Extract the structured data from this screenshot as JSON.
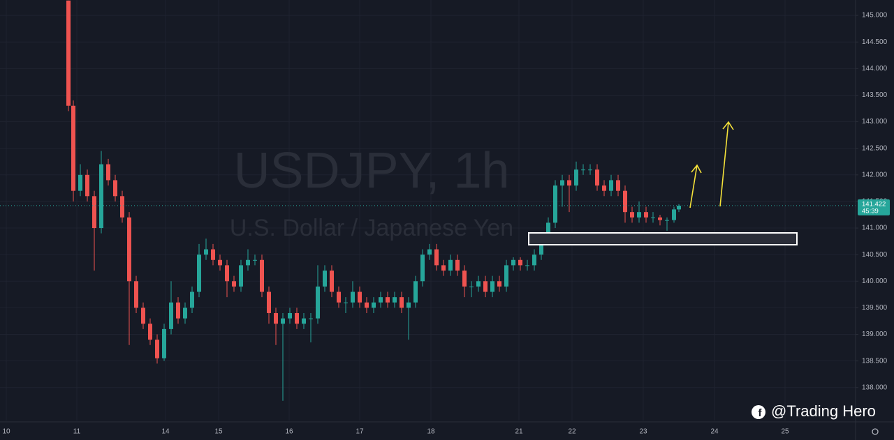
{
  "chart_data": {
    "type": "candlestick",
    "symbol_watermark": "USDJPY, 1h",
    "description_watermark": "U.S. Dollar / Japanese Yen",
    "brand": "@Trading Hero",
    "countdown": "45:39",
    "last_price": 141.422,
    "up_color": "#26a69a",
    "down_color": "#ef5350",
    "grid": true,
    "xlim": [
      0,
      122.5
    ],
    "ylim": [
      137.38,
      145.29
    ],
    "xticks": [
      {
        "value": 0.9,
        "label": "10"
      },
      {
        "value": 11.0,
        "label": "11"
      },
      {
        "value": 23.7,
        "label": "14"
      },
      {
        "value": 31.3,
        "label": "15"
      },
      {
        "value": 41.4,
        "label": "16"
      },
      {
        "value": 51.5,
        "label": "17"
      },
      {
        "value": 61.7,
        "label": "18"
      },
      {
        "value": 74.3,
        "label": "21"
      },
      {
        "value": 81.9,
        "label": "22"
      },
      {
        "value": 92.1,
        "label": "23"
      },
      {
        "value": 102.3,
        "label": "24"
      },
      {
        "value": 112.4,
        "label": "25"
      }
    ],
    "yticks": [
      {
        "value": 138.0,
        "label": "138.000"
      },
      {
        "value": 138.5,
        "label": "138.500"
      },
      {
        "value": 139.0,
        "label": "139.000"
      },
      {
        "value": 139.5,
        "label": "139.500"
      },
      {
        "value": 140.0,
        "label": "140.000"
      },
      {
        "value": 140.5,
        "label": "140.500"
      },
      {
        "value": 141.0,
        "label": "141.000"
      },
      {
        "value": 141.5,
        "label": "141.500"
      },
      {
        "value": 142.0,
        "label": "142.000"
      },
      {
        "value": 142.5,
        "label": "142.500"
      },
      {
        "value": 143.0,
        "label": "143.000"
      },
      {
        "value": 143.5,
        "label": "143.500"
      },
      {
        "value": 144.0,
        "label": "144.000"
      },
      {
        "value": 144.5,
        "label": "144.500"
      },
      {
        "value": 145.0,
        "label": "145.000"
      }
    ],
    "x": [
      9.8,
      10.5,
      11.5,
      12.5,
      13.5,
      14.5,
      15.5,
      16.5,
      17.5,
      18.5,
      19.5,
      20.5,
      21.5,
      22.5,
      23.5,
      24.5,
      25.5,
      26.5,
      27.5,
      28.5,
      29.5,
      30.5,
      31.5,
      32.5,
      33.5,
      34.5,
      35.5,
      36.5,
      37.5,
      38.5,
      39.5,
      40.5,
      41.5,
      42.5,
      43.5,
      44.5,
      45.5,
      46.5,
      47.5,
      48.5,
      49.5,
      50.5,
      51.5,
      52.5,
      53.5,
      54.5,
      55.5,
      56.5,
      57.5,
      58.5,
      59.5,
      60.5,
      61.5,
      62.5,
      63.5,
      64.5,
      65.5,
      66.5,
      67.5,
      68.5,
      69.5,
      70.5,
      71.5,
      72.5,
      73.5,
      74.5,
      75.5,
      76.5,
      77.5,
      78.5,
      79.5,
      80.5,
      81.5,
      82.5,
      83.5,
      84.5,
      85.5,
      86.5,
      87.5,
      88.5,
      89.5,
      90.5,
      91.5,
      92.5,
      93.5,
      94.5,
      95.5,
      96.5,
      97.2
    ],
    "open": [
      145.28,
      143.3,
      141.7,
      142.0,
      141.6,
      141.0,
      142.2,
      141.9,
      141.6,
      141.2,
      140.0,
      139.5,
      139.2,
      138.9,
      138.55,
      139.1,
      139.6,
      139.3,
      139.5,
      139.8,
      140.5,
      140.6,
      140.4,
      140.3,
      140.0,
      139.9,
      140.3,
      140.4,
      140.4,
      139.8,
      139.4,
      139.2,
      139.3,
      139.4,
      139.2,
      139.3,
      139.3,
      139.9,
      140.2,
      139.8,
      139.6,
      139.6,
      139.8,
      139.6,
      139.5,
      139.6,
      139.7,
      139.6,
      139.7,
      139.5,
      139.6,
      140.0,
      140.5,
      140.6,
      140.3,
      140.2,
      140.4,
      140.2,
      139.9,
      139.9,
      140.0,
      139.8,
      140.0,
      139.9,
      140.3,
      140.4,
      140.3,
      140.3,
      140.5,
      140.8,
      141.1,
      141.8,
      141.9,
      141.8,
      142.1,
      142.1,
      142.1,
      141.8,
      141.7,
      141.9,
      141.7,
      141.3,
      141.2,
      141.3,
      141.2,
      141.2,
      141.15,
      141.15,
      141.35
    ],
    "high": [
      145.28,
      143.4,
      142.2,
      142.1,
      141.7,
      142.45,
      142.3,
      142.0,
      141.7,
      141.3,
      140.1,
      139.6,
      139.3,
      139.0,
      139.2,
      140.0,
      139.7,
      139.6,
      139.9,
      140.7,
      140.8,
      140.7,
      140.5,
      140.4,
      140.1,
      140.4,
      140.6,
      140.5,
      140.5,
      139.9,
      139.5,
      139.4,
      139.5,
      139.5,
      139.4,
      139.4,
      140.3,
      140.3,
      140.3,
      139.9,
      139.7,
      140.0,
      139.9,
      139.7,
      139.7,
      139.8,
      139.8,
      139.8,
      139.8,
      139.7,
      140.1,
      140.6,
      140.7,
      140.7,
      140.4,
      140.5,
      140.5,
      140.3,
      140.0,
      140.1,
      140.1,
      140.1,
      140.1,
      140.4,
      140.45,
      140.45,
      140.4,
      140.6,
      140.9,
      141.2,
      141.9,
      142.0,
      142.0,
      142.25,
      142.2,
      142.2,
      142.2,
      141.9,
      142.0,
      142.0,
      141.8,
      141.4,
      141.5,
      141.4,
      141.3,
      141.25,
      141.2,
      141.4,
      141.45
    ],
    "low": [
      143.2,
      141.5,
      141.6,
      141.5,
      140.2,
      140.9,
      141.8,
      141.5,
      141.1,
      138.8,
      139.4,
      139.1,
      138.8,
      138.45,
      138.5,
      139.0,
      139.2,
      139.2,
      139.4,
      139.7,
      140.4,
      140.3,
      140.2,
      139.7,
      139.8,
      139.8,
      140.2,
      140.3,
      139.7,
      139.2,
      138.8,
      137.75,
      139.2,
      139.1,
      139.1,
      138.85,
      139.2,
      139.8,
      139.7,
      139.5,
      139.4,
      139.5,
      139.5,
      139.4,
      139.4,
      139.5,
      139.5,
      139.5,
      139.4,
      138.9,
      139.5,
      139.9,
      140.4,
      140.2,
      140.1,
      140.1,
      140.1,
      139.7,
      139.7,
      139.8,
      139.7,
      139.7,
      139.8,
      139.8,
      140.2,
      140.2,
      140.2,
      140.2,
      140.4,
      140.7,
      141.0,
      141.4,
      141.3,
      141.7,
      142.0,
      142.0,
      141.7,
      141.6,
      141.6,
      141.6,
      141.1,
      141.1,
      141.1,
      141.1,
      141.1,
      141.05,
      140.95,
      141.1,
      141.3
    ],
    "close": [
      143.3,
      141.7,
      142.0,
      141.6,
      141.0,
      142.2,
      141.9,
      141.6,
      141.2,
      140.0,
      139.5,
      139.2,
      138.9,
      138.55,
      139.1,
      139.6,
      139.3,
      139.5,
      139.8,
      140.5,
      140.6,
      140.4,
      140.3,
      140.0,
      139.9,
      140.3,
      140.4,
      140.4,
      139.8,
      139.4,
      139.2,
      139.3,
      139.4,
      139.2,
      139.3,
      139.3,
      139.9,
      140.2,
      139.8,
      139.6,
      139.6,
      139.8,
      139.6,
      139.5,
      139.6,
      139.7,
      139.6,
      139.7,
      139.5,
      139.6,
      140.0,
      140.5,
      140.6,
      140.3,
      140.2,
      140.4,
      140.2,
      139.9,
      139.9,
      140.0,
      139.8,
      140.0,
      139.9,
      140.3,
      140.4,
      140.3,
      140.3,
      140.5,
      140.8,
      141.1,
      141.8,
      141.9,
      141.8,
      142.1,
      142.1,
      142.1,
      141.8,
      141.7,
      141.9,
      141.7,
      141.3,
      141.2,
      141.3,
      141.2,
      141.2,
      141.15,
      141.15,
      141.35,
      141.42
    ]
  }
}
